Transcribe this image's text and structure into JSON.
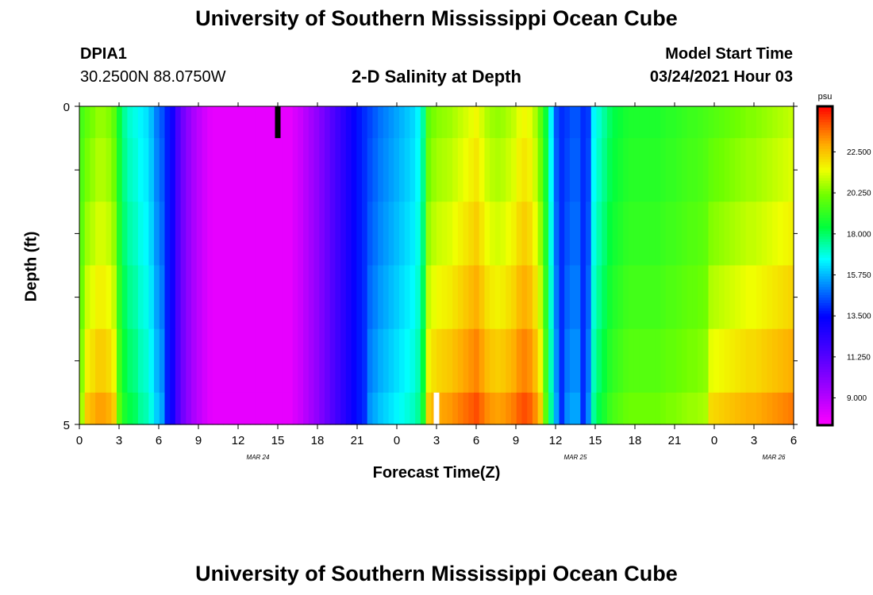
{
  "header": {
    "title_top": "University of Southern Mississippi Ocean Cube",
    "title_bottom": "University of Southern Mississippi Ocean Cube",
    "station": "DPIA1",
    "coords": "30.2500N 88.0750W",
    "model_start_label": "Model Start Time",
    "model_start_value": "03/24/2021 Hour 03"
  },
  "chart_data": {
    "type": "heatmap",
    "title": "2-D Salinity at Depth",
    "xlabel": "Forecast Time(Z)",
    "ylabel": "Depth (ft)",
    "x_tick_labels": [
      "0",
      "3",
      "6",
      "9",
      "12",
      "15",
      "18",
      "21",
      "0",
      "3",
      "6",
      "9",
      "12",
      "15",
      "18",
      "21",
      "0",
      "3",
      "6"
    ],
    "date_labels": [
      {
        "text": "MAR 24",
        "tick_index": 4
      },
      {
        "text": "MAR 25",
        "tick_index": 12
      },
      {
        "text": "MAR 26",
        "tick_index": 17
      }
    ],
    "y_tick_labels": [
      "0",
      "5"
    ],
    "ylim": [
      0,
      5
    ],
    "colorbar": {
      "unit": "psu",
      "range": [
        7.5,
        25.0
      ],
      "labels": [
        "22.500",
        "20.250",
        "18.000",
        "15.750",
        "13.500",
        "11.250",
        "9.000"
      ],
      "label_values": [
        22.5,
        20.25,
        18.0,
        15.75,
        13.5,
        11.25,
        9.0
      ]
    },
    "time_step_hours": 1,
    "hours": 54,
    "depth_levels_ft": [
      0,
      0.5,
      1.5,
      2.5,
      3.5,
      4.5
    ],
    "surface_profile": [
      19.5,
      19.9,
      20.2,
      20.5,
      20.5,
      20.3,
      19.8,
      18.5,
      17.5,
      17.0,
      16.8,
      16.5,
      16.3,
      15.8,
      15.0,
      14.5,
      13.8,
      13.0,
      11.5,
      10.5,
      9.8,
      9.2,
      8.8,
      8.4,
      8.1,
      8.0,
      8.0,
      8.0,
      8.0,
      8.0,
      8.0,
      8.0,
      8.0,
      8.0,
      8.0,
      8.0,
      8.0,
      8.0,
      8.0,
      8.0,
      8.3,
      8.6,
      9.0,
      9.4,
      9.8,
      10.3,
      10.8,
      11.3,
      11.8,
      12.3,
      12.8,
      13.3,
      13.7,
      14.0,
      14.3,
      14.6,
      14.9,
      15.1,
      15.3,
      15.5,
      15.7,
      15.9,
      16.1,
      16.5,
      17.5,
      19.8,
      20.2,
      20.4,
      20.5,
      20.6,
      20.8,
      21.0,
      21.2,
      21.4,
      21.6,
      21.2,
      20.8,
      20.6,
      20.5,
      20.6,
      20.8,
      21.0,
      21.4,
      21.6,
      21.4,
      20.8,
      19.8,
      18.5,
      16.5,
      14.5,
      14.0,
      14.2,
      14.5,
      14.5,
      14.0,
      14.2,
      16.5,
      17.0,
      17.5,
      18.0,
      18.3,
      18.5,
      18.7,
      18.8,
      18.8,
      18.8,
      18.8,
      18.8,
      18.8,
      18.9,
      19.0,
      19.0,
      19.1,
      19.2,
      19.3,
      19.3,
      19.4,
      19.5,
      19.6,
      19.7,
      19.8,
      19.9,
      20.0,
      20.1,
      20.2,
      20.3,
      20.3,
      20.4,
      20.5,
      20.6,
      20.7,
      20.8,
      20.9,
      21.0
    ],
    "depth_offsets": [
      0,
      0.3,
      0.7,
      1.2,
      1.8,
      2.5
    ],
    "annotations": [
      "surface marker at hour 15 (MAR 24)",
      "white marker at hour 27 (MAR 25 03Z) near 5 ft"
    ]
  }
}
